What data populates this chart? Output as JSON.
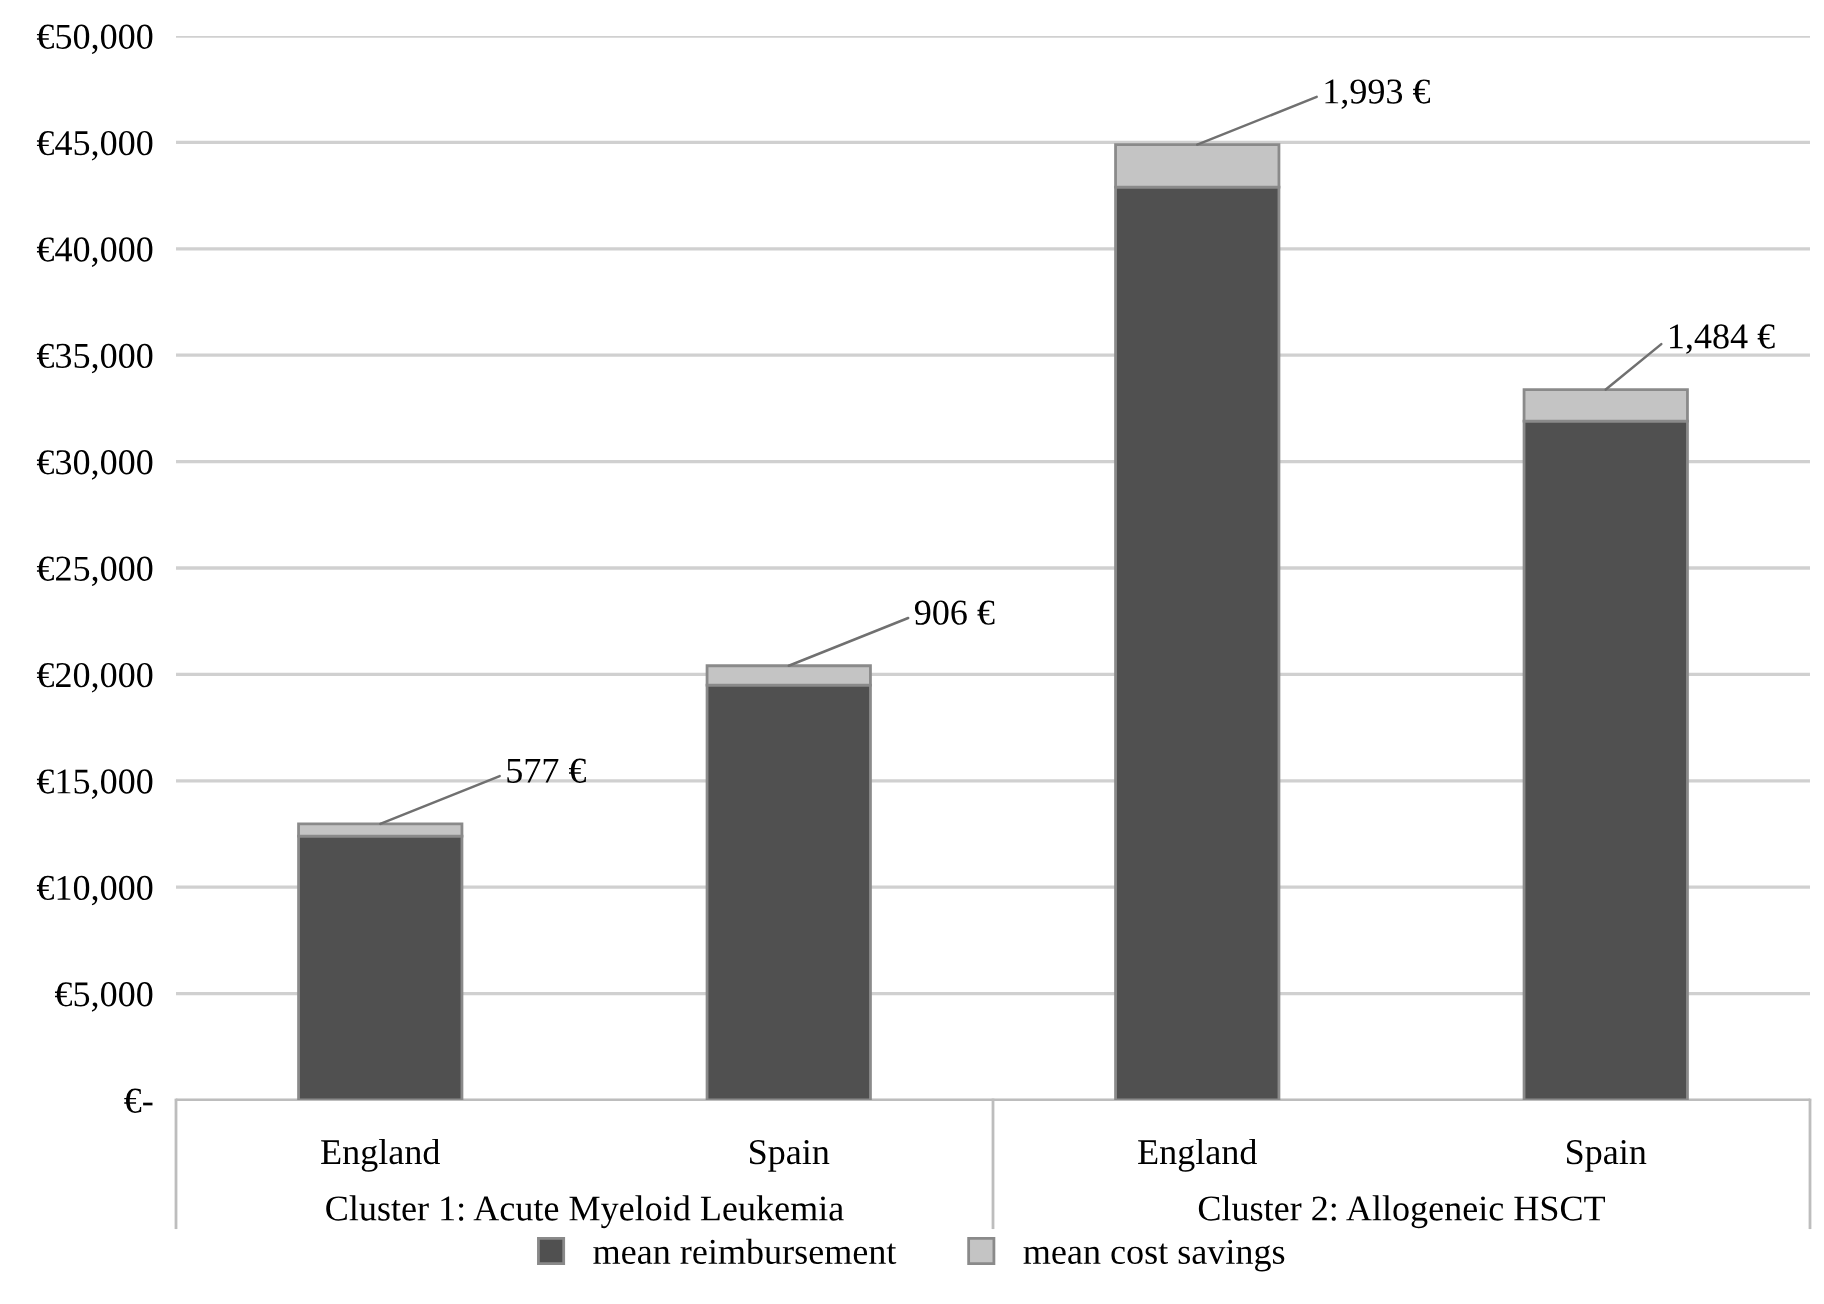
{
  "chart_data": {
    "type": "bar",
    "stacked": true,
    "categories": [
      "England",
      "Spain",
      "England",
      "Spain"
    ],
    "series": [
      {
        "name": "mean reimbursement",
        "color": "#505050",
        "values": [
          12400,
          19500,
          42900,
          31900
        ]
      },
      {
        "name": "mean cost savings",
        "color": "#c4c4c4",
        "values": [
          577,
          906,
          1993,
          1484
        ],
        "value_labels": [
          "577 €",
          "906 €",
          "1,993 €",
          "1,484 €"
        ]
      }
    ],
    "annotations": [
      "Cluster 1: Acute Myeloid Leukemia",
      "Cluster 2: Allogeneic HSCT"
    ],
    "ylim": [
      0,
      50000
    ],
    "yticks": [
      {
        "value": 0,
        "label": "€-"
      },
      {
        "value": 5000,
        "label": "€5,000"
      },
      {
        "value": 10000,
        "label": "€10,000"
      },
      {
        "value": 15000,
        "label": "€15,000"
      },
      {
        "value": 20000,
        "label": "€20,000"
      },
      {
        "value": 25000,
        "label": "€25,000"
      },
      {
        "value": 30000,
        "label": "€30,000"
      },
      {
        "value": 35000,
        "label": "€35,000"
      },
      {
        "value": 40000,
        "label": "€40,000"
      },
      {
        "value": 45000,
        "label": "€45,000"
      },
      {
        "value": 50000,
        "label": "€50,000"
      }
    ],
    "grid": "y",
    "legend": "bottom"
  }
}
